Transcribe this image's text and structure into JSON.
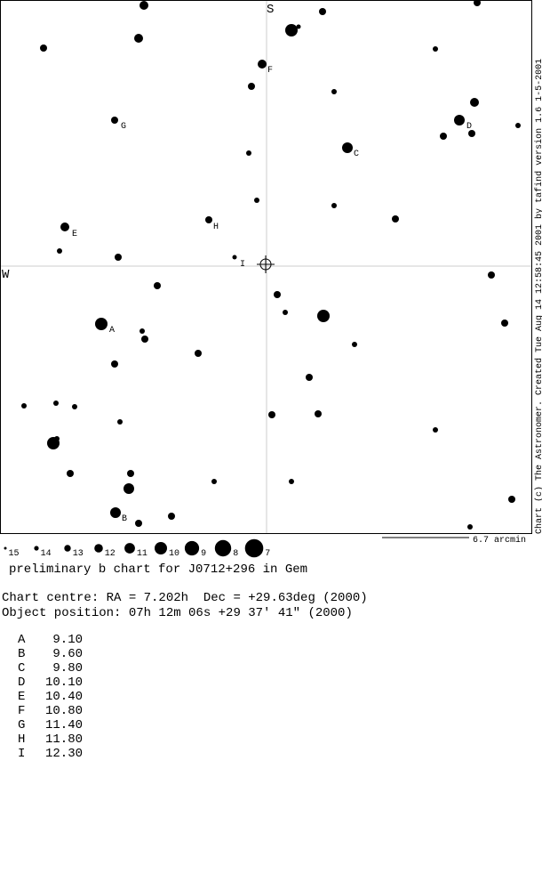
{
  "chart": {
    "top_label": "S",
    "left_label": "W",
    "credit": "Chart (c) The Astronomer. Created Tue Aug 14 12:58:45 2001 by tafind version 1.6 1-5-2001",
    "scale_label": "6.7 arcmin",
    "legend": [
      "15",
      "14",
      "13",
      "12",
      "11",
      "10",
      "9",
      "8",
      "7"
    ]
  },
  "title": "preliminary b chart for J0712+296 in Gem",
  "centre": "Chart centre: RA = 7.202h  Dec = +29.63deg (2000)",
  "object": "Object position: 07h 12m 06s +29 37′ 41\" (2000)",
  "sequence": [
    {
      "id": "A",
      "mag": "9.10"
    },
    {
      "id": "B",
      "mag": "9.60"
    },
    {
      "id": "C",
      "mag": "9.80"
    },
    {
      "id": "D",
      "mag": "10.10"
    },
    {
      "id": "E",
      "mag": "10.40"
    },
    {
      "id": "F",
      "mag": "10.80"
    },
    {
      "id": "G",
      "mag": "11.40"
    },
    {
      "id": "H",
      "mag": "11.80"
    },
    {
      "id": "I",
      "mag": "12.30"
    }
  ]
}
